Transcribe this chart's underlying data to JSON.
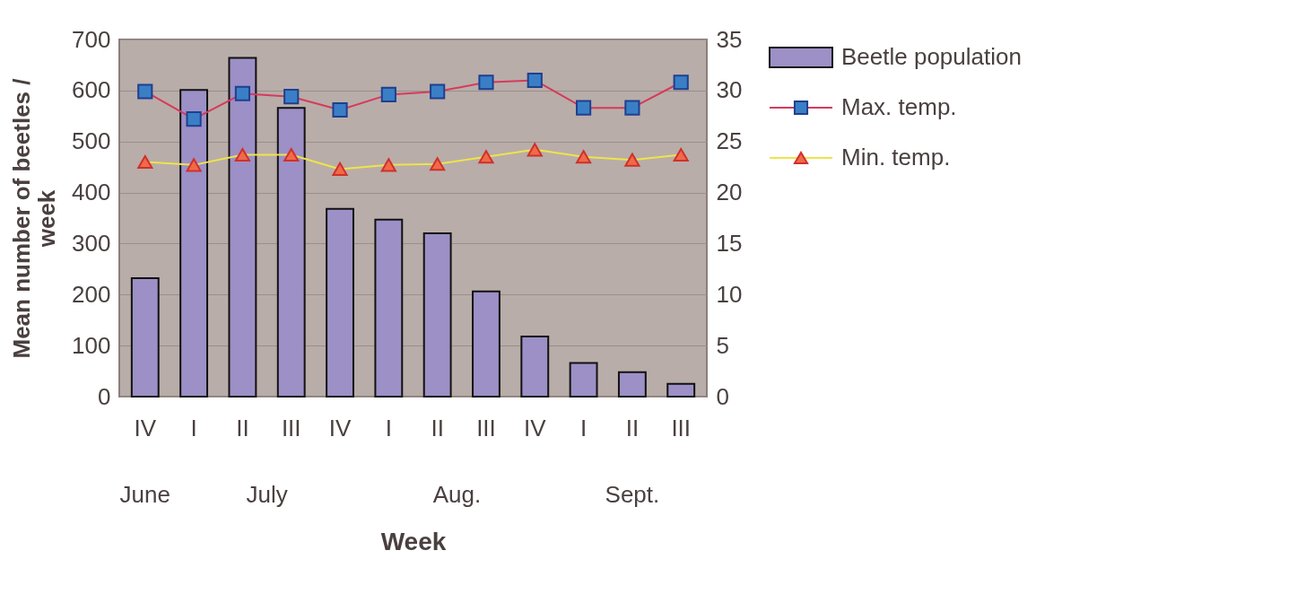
{
  "chart_data": {
    "type": "bar",
    "xlabel": "Week",
    "ylabel": "Mean number of beetles / week",
    "categories": [
      "IV",
      "I",
      "II",
      "III",
      "IV",
      "I",
      "II",
      "III",
      "IV",
      "I",
      "II",
      "III"
    ],
    "series": [
      {
        "name": "Beetle population",
        "color": "#9c90c6",
        "values": [
          232,
          601,
          664,
          566,
          368,
          347,
          320,
          206,
          118,
          66,
          48,
          25
        ]
      },
      {
        "name": "Max. temp.",
        "type": "line",
        "axis": "y2",
        "color": "#d63a5c",
        "marker": "square",
        "values": [
          29.9,
          27.2,
          29.7,
          29.4,
          28.1,
          29.6,
          29.9,
          30.8,
          31.0,
          28.3,
          28.3,
          30.8
        ]
      },
      {
        "name": "Min. temp.",
        "type": "line",
        "axis": "y2",
        "color": "#eee44a",
        "marker": "triangle",
        "values": [
          23.0,
          22.7,
          23.7,
          23.7,
          22.3,
          22.7,
          22.8,
          23.5,
          24.2,
          23.5,
          23.2,
          23.7
        ]
      }
    ],
    "ylim": [
      0,
      700
    ],
    "yticks": [
      0,
      100,
      200,
      300,
      400,
      500,
      600,
      700
    ],
    "y2lim": [
      0,
      35
    ],
    "y2ticks": [
      0,
      5,
      10,
      15,
      20,
      25,
      30,
      35
    ],
    "annotations": [
      "June",
      "July",
      "Aug.",
      "Sept."
    ],
    "grid": "y",
    "legend": "right"
  }
}
